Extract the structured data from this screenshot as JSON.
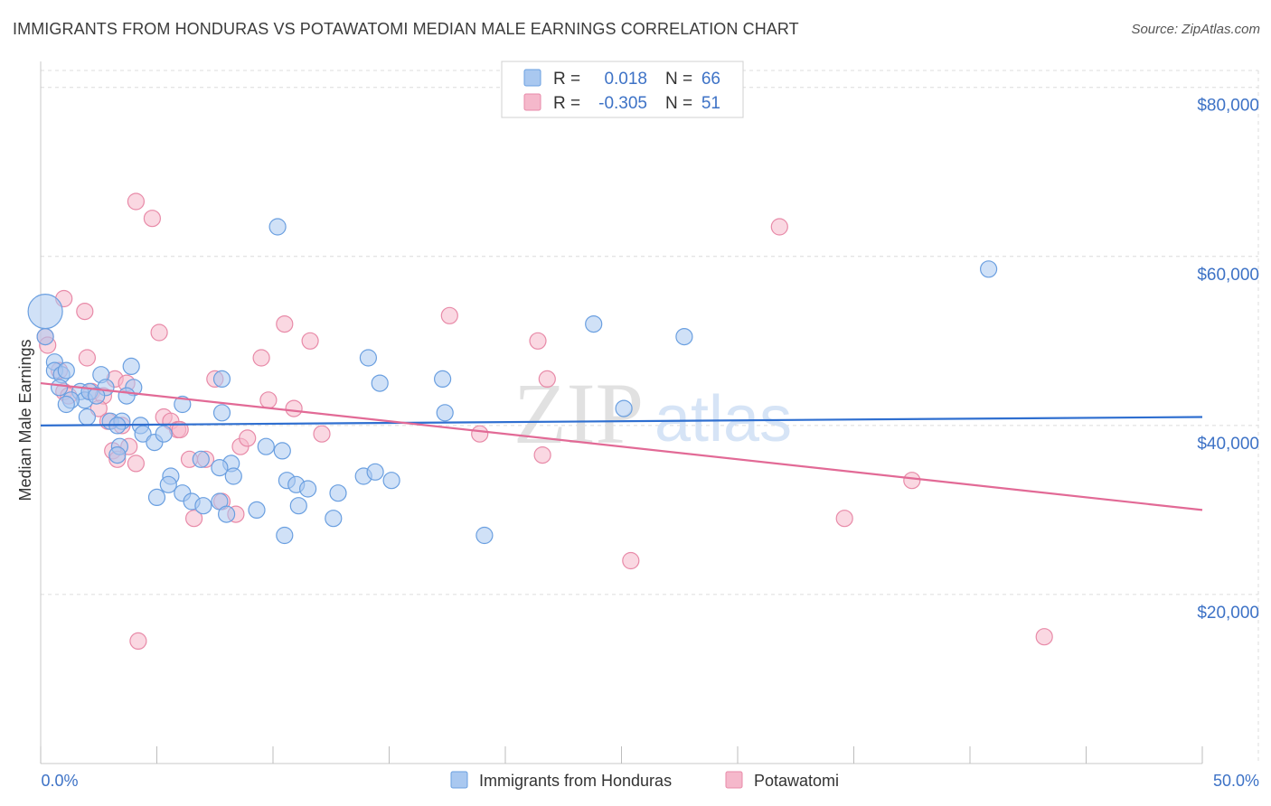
{
  "title": "IMMIGRANTS FROM HONDURAS VS POTAWATOMI MEDIAN MALE EARNINGS CORRELATION CHART",
  "source": "Source: ZipAtlas.com",
  "watermark": {
    "zip": "ZIP",
    "atlas": "atlas"
  },
  "colors": {
    "series1_fill": "#a9c8f0",
    "series1_stroke": "#6a9fe0",
    "series1_line": "#2f6fd0",
    "series2_fill": "#f5b8cb",
    "series2_stroke": "#e88aa8",
    "series2_line": "#e26a96",
    "grid": "#dcdcdc",
    "axis_text": "#3d72c6"
  },
  "legend_top": {
    "rows": [
      {
        "r_label": "R =",
        "r_value": "0.018",
        "n_label": "N =",
        "n_value": "66"
      },
      {
        "r_label": "R =",
        "r_value": "-0.305",
        "n_label": "N =",
        "n_value": "51"
      }
    ]
  },
  "chart_data": {
    "type": "scatter",
    "xlabel": "",
    "ylabel": "Median Male Earnings",
    "xlim": [
      0,
      50
    ],
    "ylim": [
      0,
      82000
    ],
    "x_tick_labels": [
      "0.0%",
      "50.0%"
    ],
    "y_ticks": [
      20000,
      40000,
      60000,
      80000
    ],
    "y_tick_labels": [
      "$20,000",
      "$40,000",
      "$60,000",
      "$80,000"
    ],
    "grid": true,
    "legend_position": "bottom",
    "series": [
      {
        "name": "Immigrants from Honduras",
        "trend": {
          "x": [
            0,
            50
          ],
          "y": [
            40000,
            41000
          ]
        },
        "points": [
          [
            0.2,
            53500
          ],
          [
            0.2,
            50500
          ],
          [
            0.6,
            47500
          ],
          [
            0.6,
            46500
          ],
          [
            0.9,
            46000
          ],
          [
            1.1,
            46500
          ],
          [
            0.8,
            44500
          ],
          [
            1.7,
            44000
          ],
          [
            1.9,
            43000
          ],
          [
            1.3,
            43000
          ],
          [
            1.1,
            42500
          ],
          [
            2.0,
            41000
          ],
          [
            2.1,
            44000
          ],
          [
            2.6,
            46000
          ],
          [
            2.8,
            44500
          ],
          [
            3.0,
            40500
          ],
          [
            3.5,
            40500
          ],
          [
            3.9,
            47000
          ],
          [
            4.0,
            44500
          ],
          [
            3.7,
            43500
          ],
          [
            3.3,
            40000
          ],
          [
            3.4,
            37500
          ],
          [
            4.3,
            40000
          ],
          [
            4.4,
            39000
          ],
          [
            4.9,
            38000
          ],
          [
            5.3,
            39000
          ],
          [
            6.1,
            42500
          ],
          [
            7.8,
            45500
          ],
          [
            7.8,
            41500
          ],
          [
            6.9,
            36000
          ],
          [
            5.6,
            34000
          ],
          [
            5.5,
            33000
          ],
          [
            5.0,
            31500
          ],
          [
            6.1,
            32000
          ],
          [
            6.5,
            31000
          ],
          [
            7.7,
            31000
          ],
          [
            7.0,
            30500
          ],
          [
            8.0,
            29500
          ],
          [
            8.2,
            35500
          ],
          [
            8.3,
            34000
          ],
          [
            9.3,
            30000
          ],
          [
            9.7,
            37500
          ],
          [
            10.4,
            37000
          ],
          [
            10.6,
            33500
          ],
          [
            11.0,
            33000
          ],
          [
            11.1,
            30500
          ],
          [
            11.5,
            32500
          ],
          [
            12.8,
            32000
          ],
          [
            12.6,
            29000
          ],
          [
            13.9,
            34000
          ],
          [
            14.4,
            34500
          ],
          [
            15.1,
            33500
          ],
          [
            14.6,
            45000
          ],
          [
            14.1,
            48000
          ],
          [
            10.5,
            27000
          ],
          [
            10.2,
            63500
          ],
          [
            17.3,
            45500
          ],
          [
            17.4,
            41500
          ],
          [
            19.1,
            27000
          ],
          [
            23.8,
            52000
          ],
          [
            25.1,
            42000
          ],
          [
            27.7,
            50500
          ],
          [
            40.8,
            58500
          ],
          [
            7.7,
            35000
          ],
          [
            3.3,
            36500
          ],
          [
            2.4,
            43500
          ]
        ]
      },
      {
        "name": "Potawatomi",
        "trend": {
          "x": [
            0,
            50
          ],
          "y": [
            45000,
            30000
          ]
        },
        "points": [
          [
            0.2,
            50500
          ],
          [
            0.3,
            49500
          ],
          [
            0.8,
            46500
          ],
          [
            1.0,
            44000
          ],
          [
            1.2,
            43500
          ],
          [
            1.0,
            55000
          ],
          [
            1.9,
            53500
          ],
          [
            2.0,
            48000
          ],
          [
            2.2,
            44000
          ],
          [
            2.7,
            43500
          ],
          [
            2.5,
            42000
          ],
          [
            2.9,
            40500
          ],
          [
            3.2,
            45500
          ],
          [
            3.7,
            45000
          ],
          [
            3.5,
            40000
          ],
          [
            3.8,
            37500
          ],
          [
            4.1,
            35500
          ],
          [
            3.1,
            37000
          ],
          [
            3.3,
            36000
          ],
          [
            4.1,
            66500
          ],
          [
            4.8,
            64500
          ],
          [
            5.1,
            51000
          ],
          [
            5.3,
            41000
          ],
          [
            5.6,
            40500
          ],
          [
            5.9,
            39500
          ],
          [
            6.4,
            36000
          ],
          [
            6.6,
            29000
          ],
          [
            7.1,
            36000
          ],
          [
            7.5,
            45500
          ],
          [
            7.8,
            31000
          ],
          [
            8.4,
            29500
          ],
          [
            8.6,
            37500
          ],
          [
            8.9,
            38500
          ],
          [
            9.5,
            48000
          ],
          [
            9.8,
            43000
          ],
          [
            10.5,
            52000
          ],
          [
            10.9,
            42000
          ],
          [
            11.6,
            50000
          ],
          [
            12.1,
            39000
          ],
          [
            17.6,
            53000
          ],
          [
            18.9,
            39000
          ],
          [
            21.4,
            50000
          ],
          [
            21.6,
            36500
          ],
          [
            21.8,
            45500
          ],
          [
            25.4,
            24000
          ],
          [
            31.8,
            63500
          ],
          [
            34.6,
            29000
          ],
          [
            37.5,
            33500
          ],
          [
            43.2,
            15000
          ],
          [
            4.2,
            14500
          ],
          [
            6.0,
            39500
          ]
        ]
      }
    ]
  }
}
